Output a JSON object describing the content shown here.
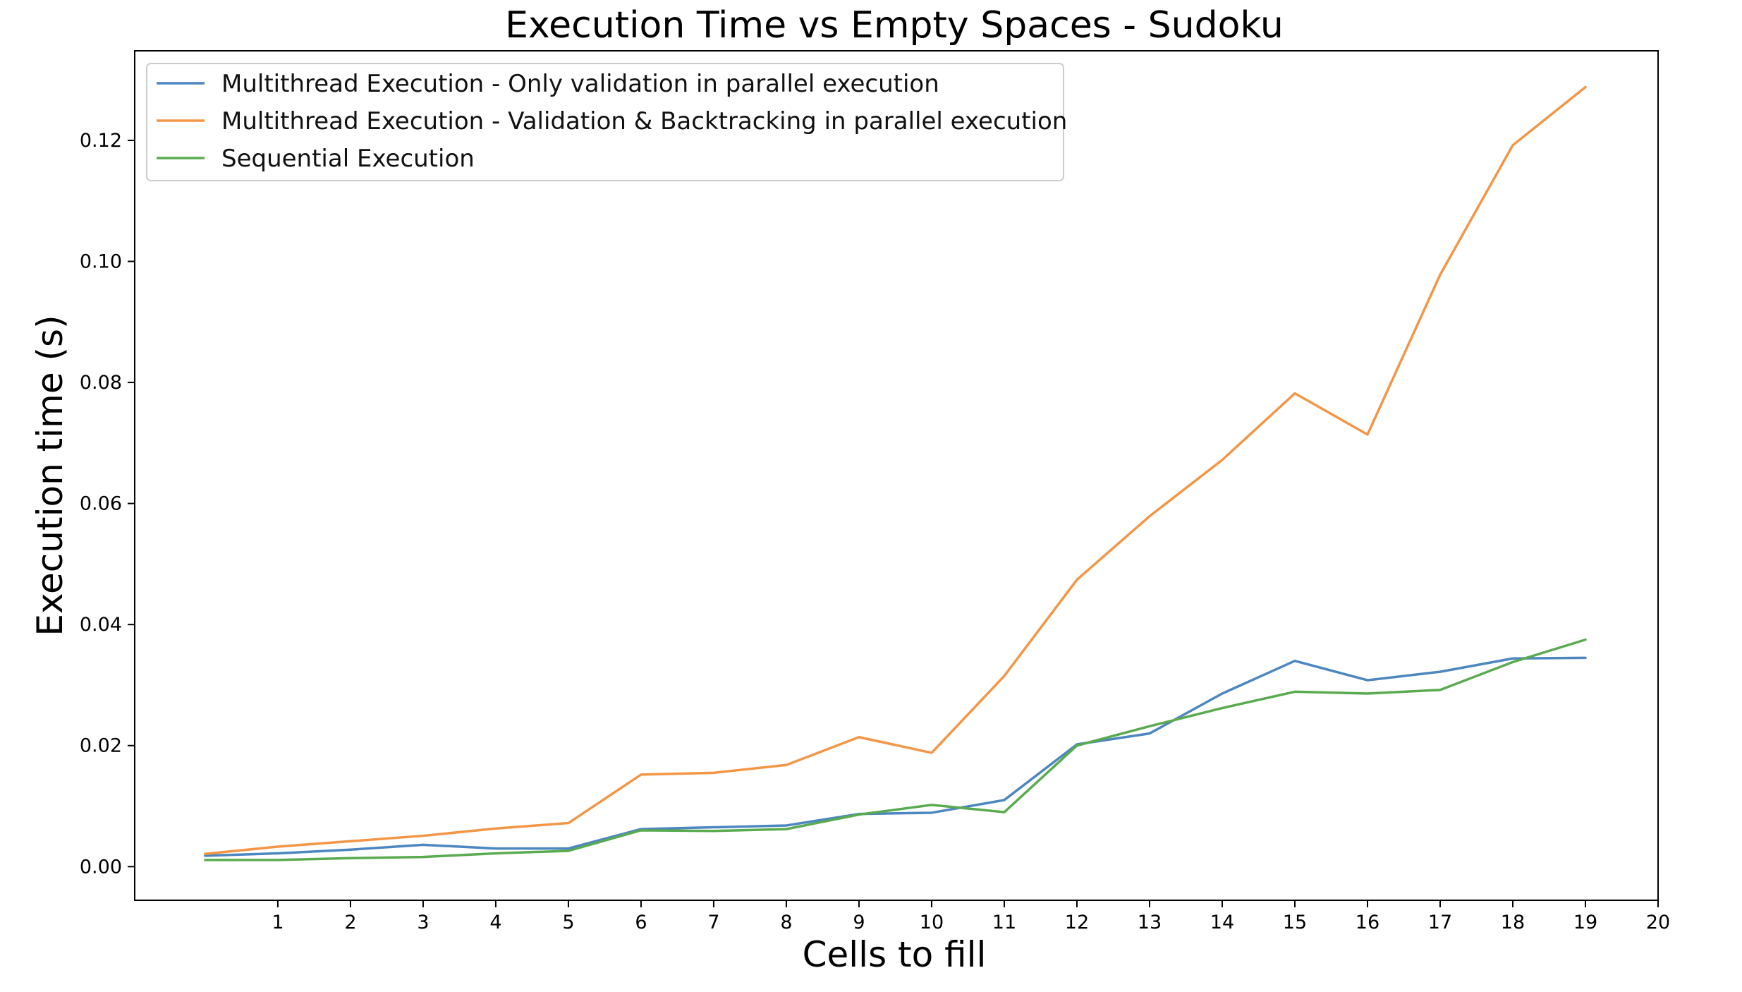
{
  "chart_data": {
    "type": "line",
    "title": "Execution Time vs Empty Spaces - Sudoku",
    "xlabel": "Cells to fill",
    "ylabel": "Execution time (s)",
    "xlim": [
      -0.97,
      20
    ],
    "ylim": [
      -0.00556,
      0.1348
    ],
    "xticks": [
      1,
      2,
      3,
      4,
      5,
      6,
      7,
      8,
      9,
      10,
      11,
      12,
      13,
      14,
      15,
      16,
      17,
      18,
      19,
      20
    ],
    "yticks": [
      0.0,
      0.02,
      0.04,
      0.06,
      0.08,
      0.1,
      0.12
    ],
    "ytick_labels": [
      "0.00",
      "0.02",
      "0.04",
      "0.06",
      "0.08",
      "0.10",
      "0.12"
    ],
    "x": [
      0,
      1,
      2,
      3,
      4,
      5,
      6,
      7,
      8,
      9,
      10,
      11,
      12,
      13,
      14,
      15,
      16,
      17,
      18,
      19
    ],
    "legend_position": "top-left",
    "grid": false,
    "series": [
      {
        "name": "Multithread Execution - Only validation in parallel execution",
        "color": "#4c87c0",
        "values": [
          0.0018,
          0.0022,
          0.0028,
          0.0036,
          0.003,
          0.003,
          0.0062,
          0.0065,
          0.0068,
          0.0087,
          0.0089,
          0.011,
          0.0202,
          0.022,
          0.0286,
          0.034,
          0.0308,
          0.0322,
          0.0344,
          0.0345
        ]
      },
      {
        "name": "Multithread Execution - Validation & Backtracking in parallel execution",
        "color": "#f39646",
        "values": [
          0.0021,
          0.0033,
          0.0042,
          0.0051,
          0.0063,
          0.0072,
          0.0152,
          0.0155,
          0.0168,
          0.0214,
          0.0188,
          0.0315,
          0.0474,
          0.0579,
          0.0672,
          0.0782,
          0.0714,
          0.0978,
          0.1192,
          0.1288
        ]
      },
      {
        "name": "Sequential Execution",
        "color": "#5aab50",
        "values": [
          0.0011,
          0.0011,
          0.0014,
          0.0016,
          0.0022,
          0.0026,
          0.006,
          0.0059,
          0.0062,
          0.0086,
          0.0102,
          0.009,
          0.02,
          0.0232,
          0.0262,
          0.0289,
          0.0286,
          0.0292,
          0.0338,
          0.0375
        ]
      }
    ]
  }
}
